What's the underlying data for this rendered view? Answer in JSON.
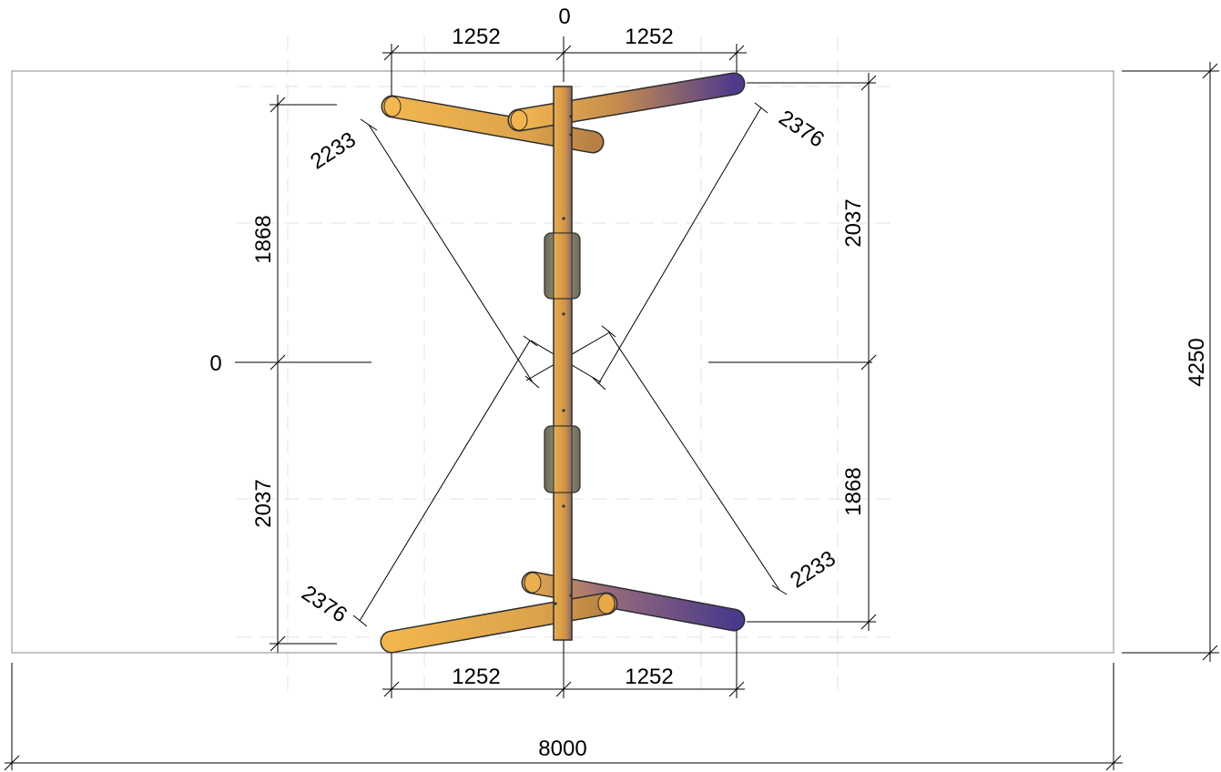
{
  "dimensions": {
    "top_origin": "0",
    "top_left": "1252",
    "top_right": "1252",
    "bottom_left": "1252",
    "bottom_right": "1252",
    "left_origin": "0",
    "left_upper": "1868",
    "left_lower": "2037",
    "right_upper": "2037",
    "right_lower": "1868",
    "diag_top_left": "2233",
    "diag_top_right": "2376",
    "diag_bottom_left": "2376",
    "diag_bottom_right": "2233",
    "overall_width": "8000",
    "overall_height": "4250"
  },
  "colors": {
    "log_light": "#f0b04a",
    "log_mid": "#c89044",
    "log_dark": "#5a3d8a",
    "log_shadow": "#3a2a6a",
    "post": "#d89a48",
    "pad": "#8f8a6e"
  }
}
